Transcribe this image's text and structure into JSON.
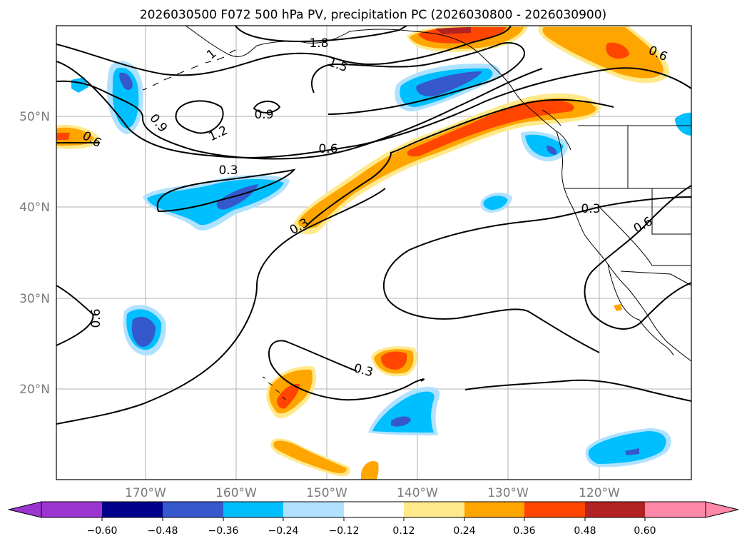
{
  "title": "2026030500 F072 500 hPa PV, precipitation PC (2026030800 - 2026030900)",
  "lat_labels": [
    "50°N",
    "40°N",
    "30°N",
    "20°N"
  ],
  "lon_labels": [
    "170°W",
    "160°W",
    "150°W",
    "140°W",
    "130°W",
    "120°W"
  ],
  "contour_labels": [
    "1.8",
    "1",
    "1.5",
    "0.6",
    "0.9",
    "0.9",
    "1.2",
    "0.6",
    "0.6",
    "0.3",
    "0.3",
    "0.3",
    "0.6",
    "0.6",
    "0.3"
  ],
  "colorbar": {
    "tick_labels": [
      "−0.60",
      "−0.48",
      "−0.36",
      "−0.24",
      "−0.12",
      "0.12",
      "0.24",
      "0.36",
      "0.48",
      "0.60"
    ],
    "colors": [
      "#9b35d0",
      "#00008b",
      "#3558cc",
      "#00bfff",
      "#b0e2ff",
      "#ffffff",
      "#ffe98a",
      "#ffa500",
      "#ff4500",
      "#b22222",
      "#ff87a8"
    ]
  },
  "colors": {
    "neg_light": "#b0e2ff",
    "neg_mid": "#00bfff",
    "neg_dark": "#3558cc",
    "pos_light": "#ffe98a",
    "pos_mid": "#ffa500",
    "pos_dark": "#ff4500",
    "pos_darker": "#b22222",
    "grid": "#b0b0b0"
  }
}
